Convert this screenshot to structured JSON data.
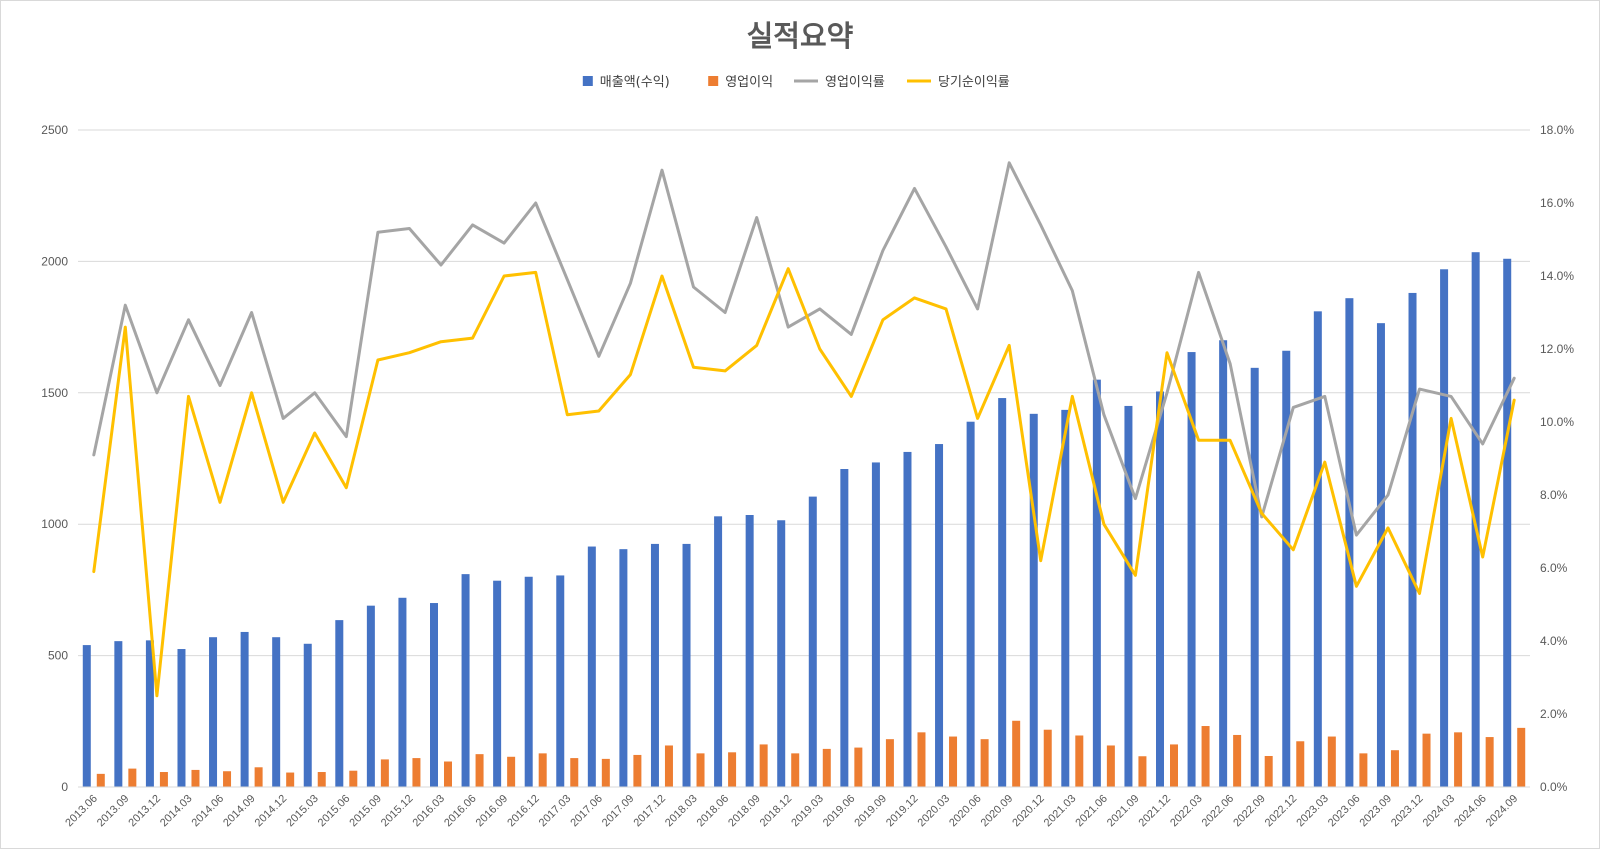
{
  "chart_data": {
    "type": "bar",
    "title": "실적요약",
    "legend_position": "top",
    "grid": true,
    "categories": [
      "2013.06",
      "2013.09",
      "2013.12",
      "2014.03",
      "2014.06",
      "2014.09",
      "2014.12",
      "2015.03",
      "2015.06",
      "2015.09",
      "2015.12",
      "2016.03",
      "2016.06",
      "2016.09",
      "2016.12",
      "2017.03",
      "2017.06",
      "2017.09",
      "2017.12",
      "2018.03",
      "2018.06",
      "2018.09",
      "2018.12",
      "2019.03",
      "2019.06",
      "2019.09",
      "2019.12",
      "2020.03",
      "2020.06",
      "2020.09",
      "2020.12",
      "2021.03",
      "2021.06",
      "2021.09",
      "2021.12",
      "2022.03",
      "2022.06",
      "2022.09",
      "2022.12",
      "2023.03",
      "2023.06",
      "2023.09",
      "2023.12",
      "2024.03",
      "2024.06",
      "2024.09"
    ],
    "y_left": {
      "min": 0,
      "max": 2500,
      "ticks": [
        "0",
        "500",
        "1000",
        "1500",
        "2000",
        "2500"
      ]
    },
    "y_right": {
      "min": 0,
      "max": 18,
      "ticks": [
        "0.0%",
        "2.0%",
        "4.0%",
        "6.0%",
        "8.0%",
        "10.0%",
        "12.0%",
        "14.0%",
        "16.0%",
        "18.0%"
      ]
    },
    "series": [
      {
        "name": "매출액(수익)",
        "type": "bar",
        "axis": "left",
        "color": "#4472c4",
        "values": [
          540,
          555,
          558,
          525,
          570,
          590,
          570,
          545,
          635,
          690,
          720,
          700,
          810,
          785,
          800,
          805,
          915,
          905,
          925,
          925,
          1030,
          1035,
          1015,
          1105,
          1210,
          1235,
          1275,
          1305,
          1390,
          1480,
          1420,
          1435,
          1550,
          1450,
          1505,
          1655,
          1700,
          1595,
          1660,
          1810,
          1860,
          1765,
          1880,
          1970,
          2035,
          2010
        ]
      },
      {
        "name": "영업이익",
        "type": "bar",
        "axis": "left",
        "color": "#ed7d31",
        "values": [
          50,
          70,
          57,
          65,
          60,
          75,
          55,
          57,
          62,
          105,
          110,
          97,
          125,
          115,
          128,
          110,
          107,
          122,
          158,
          128,
          132,
          162,
          128,
          145,
          150,
          182,
          208,
          192,
          182,
          252,
          218,
          196,
          158,
          117,
          162,
          232,
          198,
          118,
          174,
          192,
          128,
          140,
          203,
          208,
          190,
          225
        ]
      },
      {
        "name": "영업이익률",
        "type": "line",
        "axis": "right",
        "color": "#a5a5a5",
        "values": [
          9.1,
          13.2,
          10.8,
          12.8,
          11.0,
          13.0,
          10.1,
          10.8,
          9.6,
          15.2,
          15.3,
          14.3,
          15.4,
          14.9,
          16.0,
          13.9,
          11.8,
          13.8,
          16.9,
          13.7,
          13.0,
          15.6,
          12.6,
          13.1,
          12.4,
          14.7,
          16.4,
          14.8,
          13.1,
          17.1,
          15.4,
          13.6,
          10.2,
          7.9,
          10.8,
          14.1,
          11.6,
          7.4,
          10.4,
          10.7,
          6.9,
          8.0,
          10.9,
          10.7,
          9.4,
          11.2
        ]
      },
      {
        "name": "당기순이익률",
        "type": "line",
        "axis": "right",
        "color": "#ffc000",
        "values": [
          5.9,
          12.6,
          2.5,
          10.7,
          7.8,
          10.8,
          7.8,
          9.7,
          8.2,
          11.7,
          11.9,
          12.2,
          12.3,
          14.0,
          14.1,
          10.2,
          10.3,
          11.3,
          14.0,
          11.5,
          11.4,
          12.1,
          14.2,
          12.0,
          10.7,
          12.8,
          13.4,
          13.1,
          10.1,
          12.1,
          6.2,
          10.7,
          7.2,
          5.8,
          11.9,
          9.5,
          9.5,
          7.5,
          6.5,
          8.9,
          5.5,
          7.1,
          5.3,
          10.1,
          6.3,
          10.6
        ]
      }
    ]
  }
}
